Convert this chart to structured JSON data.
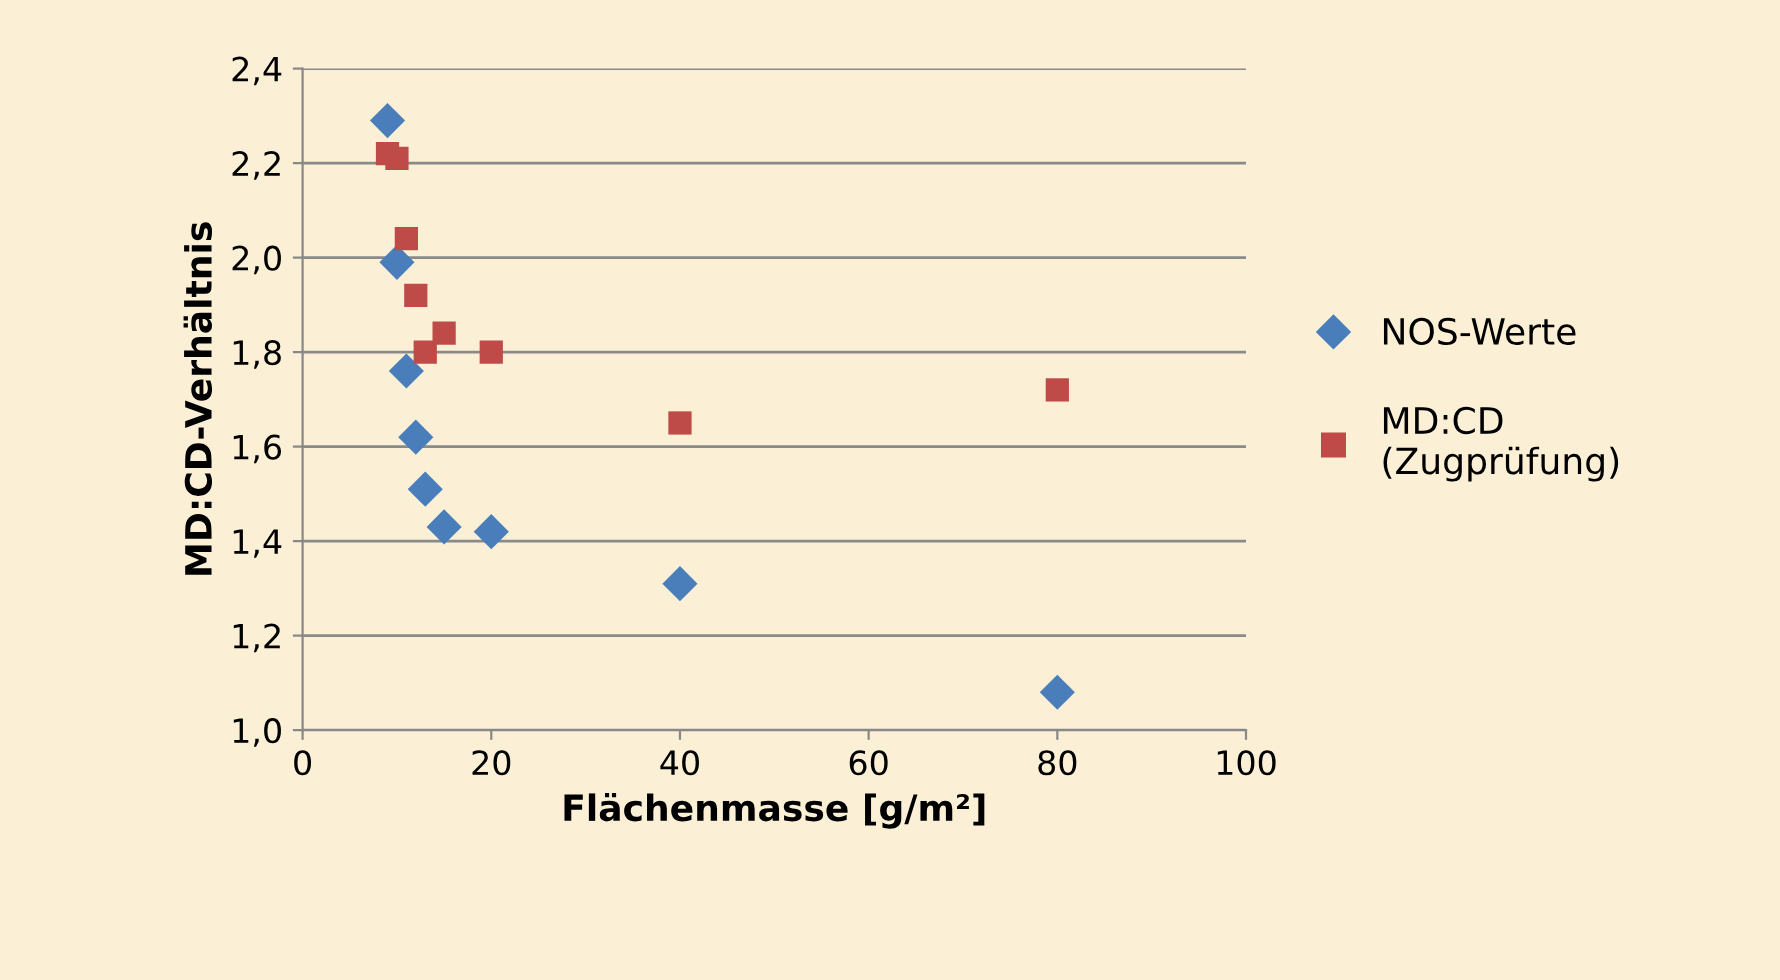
{
  "chart_data": {
    "type": "scatter",
    "xlabel": "Flächenmasse [g/m²]",
    "ylabel": "MD:CD-Verhältnis",
    "xlim": [
      0,
      100
    ],
    "xticks": [
      0,
      20,
      40,
      60,
      80,
      100
    ],
    "ylim": [
      1.0,
      2.4
    ],
    "yticks": [
      {
        "value": 1.0,
        "label": "1,0"
      },
      {
        "value": 1.2,
        "label": "1,2"
      },
      {
        "value": 1.4,
        "label": "1,4"
      },
      {
        "value": 1.6,
        "label": "1,6"
      },
      {
        "value": 1.8,
        "label": "1,8"
      },
      {
        "value": 2.0,
        "label": "2,0"
      },
      {
        "value": 2.2,
        "label": "2,2"
      },
      {
        "value": 2.4,
        "label": "2,4"
      }
    ],
    "grid": "y",
    "legend": "right",
    "series": [
      {
        "name": "NOS-Werte",
        "color": "#4a7ebb",
        "marker": "diamond",
        "x": [
          9,
          10,
          11,
          12,
          13,
          15,
          20,
          40,
          80
        ],
        "values": [
          2.29,
          1.99,
          1.76,
          1.62,
          1.51,
          1.43,
          1.42,
          1.31,
          1.08
        ]
      },
      {
        "name": "MD:CD\n(Zugprüfung)",
        "color": "#be4b48",
        "marker": "square",
        "x": [
          9,
          10,
          11,
          12,
          13,
          15,
          20,
          40,
          80
        ],
        "values": [
          2.22,
          2.21,
          2.04,
          1.92,
          1.8,
          1.84,
          1.8,
          1.65,
          1.72
        ]
      }
    ]
  }
}
